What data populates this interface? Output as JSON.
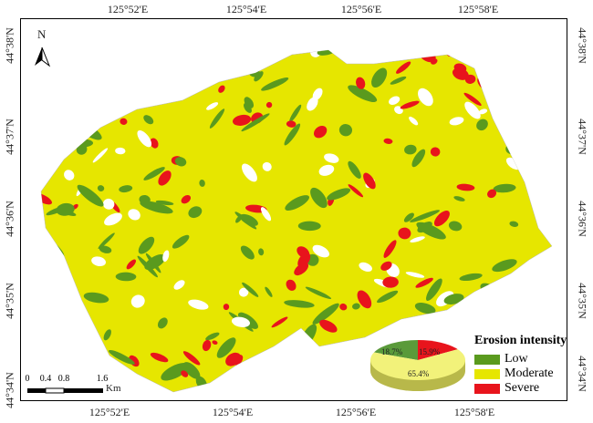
{
  "north_label": "N",
  "lon_labels": [
    "125°52'E",
    "125°54'E",
    "125°56'E",
    "125°58'E"
  ],
  "lat_labels": [
    "44°38'N",
    "44°37'N",
    "44°36'N",
    "44°35'N",
    "44°34'N"
  ],
  "legend": {
    "title": "Erosion intensity",
    "items": [
      {
        "label": "Low",
        "color": "#5a9a1e"
      },
      {
        "label": "Moderate",
        "color": "#e6e600"
      },
      {
        "label": "Severe",
        "color": "#e8141c"
      }
    ]
  },
  "pie": {
    "slices": [
      {
        "label": "18.7%",
        "value": 18.7,
        "color": "#5a9a3a"
      },
      {
        "label": "15.9%",
        "value": 15.9,
        "color": "#e8141c"
      },
      {
        "label": "65.4%",
        "value": 65.4,
        "color": "#f2f27a"
      }
    ]
  },
  "scale_bar": {
    "ticks": [
      "0",
      "0.4",
      "0.8",
      "1.6"
    ],
    "unit": "Km"
  }
}
